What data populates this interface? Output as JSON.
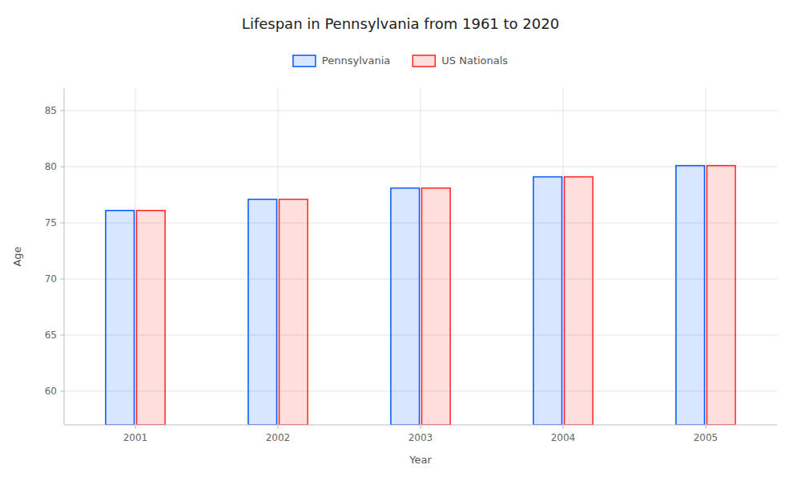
{
  "chart_data": {
    "type": "bar",
    "title": "Lifespan in Pennsylvania from 1961 to 2020",
    "x_label": "Year",
    "y_label": "Age",
    "categories": [
      "2001",
      "2002",
      "2003",
      "2004",
      "2005"
    ],
    "series": [
      {
        "name": "Pennsylvania",
        "color": "#0055ff",
        "values": [
          76.1,
          77.1,
          78.1,
          79.1,
          80.1
        ]
      },
      {
        "name": "US Nationals",
        "color": "#ff2222",
        "values": [
          76.1,
          77.1,
          78.1,
          79.1,
          80.1
        ]
      }
    ],
    "ylim": [
      57,
      87
    ],
    "yticks": [
      60,
      65,
      70,
      75,
      80,
      85
    ],
    "grid": true,
    "legend": "top"
  }
}
